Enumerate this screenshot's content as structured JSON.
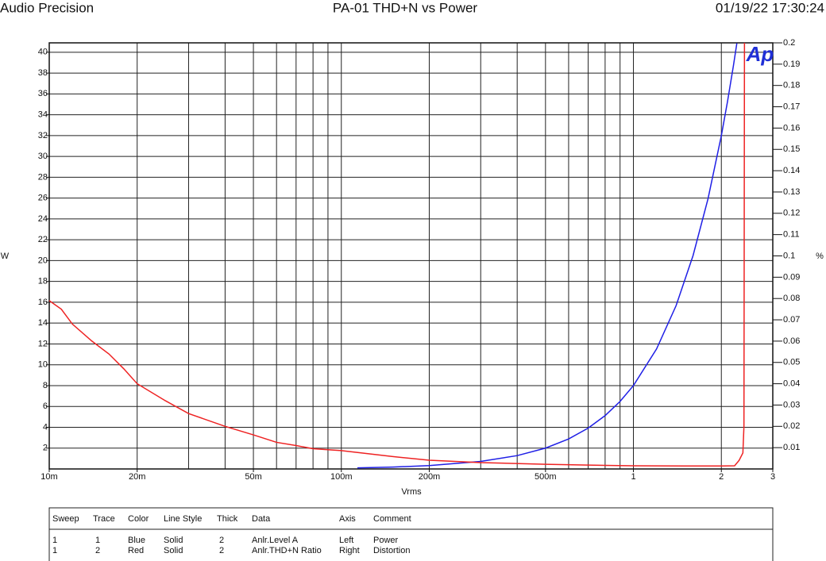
{
  "chart_data": {
    "type": "line",
    "brand": "Audio Precision",
    "title": "PA-01 THD+N vs Power",
    "timestamp": "01/19/22 17:30:24",
    "logo": "Ap",
    "ylabel": "W",
    "y2label": "%",
    "xlabel": "Vrms",
    "xscale": "log",
    "xlim": [
      0.01,
      3
    ],
    "xticks": [
      {
        "value": 0.01,
        "label": "10m"
      },
      {
        "value": 0.02,
        "label": "20m"
      },
      {
        "value": 0.05,
        "label": "50m"
      },
      {
        "value": 0.1,
        "label": "100m"
      },
      {
        "value": 0.2,
        "label": "200m"
      },
      {
        "value": 0.5,
        "label": "500m"
      },
      1,
      2,
      3
    ],
    "xgrid": [
      0.01,
      0.02,
      0.03,
      0.04,
      0.05,
      0.06,
      0.07,
      0.08,
      0.09,
      0.1,
      0.2,
      0.3,
      0.4,
      0.5,
      0.6,
      0.7,
      0.8,
      0.9,
      1,
      2,
      3
    ],
    "ylim": [
      0,
      40.9
    ],
    "yticks": [
      2,
      4,
      6,
      8,
      10,
      12,
      14,
      16,
      18,
      20,
      22,
      24,
      26,
      28,
      30,
      32,
      34,
      36,
      38,
      40
    ],
    "y2lim": [
      0,
      0.2
    ],
    "y2ticks": [
      0.01,
      0.02,
      0.03,
      0.04,
      0.05,
      0.06,
      0.07,
      0.08,
      0.09,
      0.1,
      0.11,
      0.12,
      0.13,
      0.14,
      0.15,
      0.16,
      0.17,
      0.18,
      0.19,
      0.2
    ],
    "grid": true,
    "series": [
      {
        "color": "#1f1fe6",
        "axis": "y",
        "x": [
          0.1135,
          0.15,
          0.2,
          0.3,
          0.4,
          0.5,
          0.6,
          0.7,
          0.8,
          0.9,
          1,
          1.2,
          1.4,
          1.6,
          1.8,
          2,
          2.1,
          2.2,
          2.26
        ],
        "values": [
          0.103,
          0.18,
          0.32,
          0.72,
          1.28,
          2,
          2.88,
          3.92,
          5.12,
          6.48,
          8,
          11.52,
          15.68,
          20.48,
          25.92,
          32,
          35.28,
          38.72,
          40.86
        ]
      },
      {
        "color": "#ee2222",
        "axis": "y2",
        "x": [
          0.01,
          0.011,
          0.012,
          0.014,
          0.016,
          0.018,
          0.02,
          0.025,
          0.03,
          0.04,
          0.05,
          0.06,
          0.07,
          0.08,
          0.1,
          0.15,
          0.2,
          0.3,
          0.5,
          0.7,
          1,
          1.5,
          2,
          2.22,
          2.3,
          2.37,
          2.39,
          2.4
        ],
        "values": [
          0.079,
          0.075,
          0.068,
          0.06,
          0.054,
          0.047,
          0.04,
          0.032,
          0.026,
          0.02,
          0.016,
          0.0125,
          0.011,
          0.0095,
          0.0086,
          0.0058,
          0.0041,
          0.003,
          0.0022,
          0.0018,
          0.0015,
          0.0014,
          0.0014,
          0.0015,
          0.004,
          0.0075,
          0.02,
          0.2
        ]
      }
    ],
    "table": {
      "columns": [
        "Sweep",
        "Trace",
        "Color",
        "Line Style",
        "Thick",
        "Data",
        "Axis",
        "Comment"
      ],
      "rows": [
        [
          "1",
          "1",
          "Blue",
          "Solid",
          "2",
          "Anlr.Level A",
          "Left",
          "Power"
        ],
        [
          "1",
          "2",
          "Red",
          "Solid",
          "2",
          "Anlr.THD+N Ratio",
          "Right",
          "Distortion"
        ]
      ]
    }
  }
}
